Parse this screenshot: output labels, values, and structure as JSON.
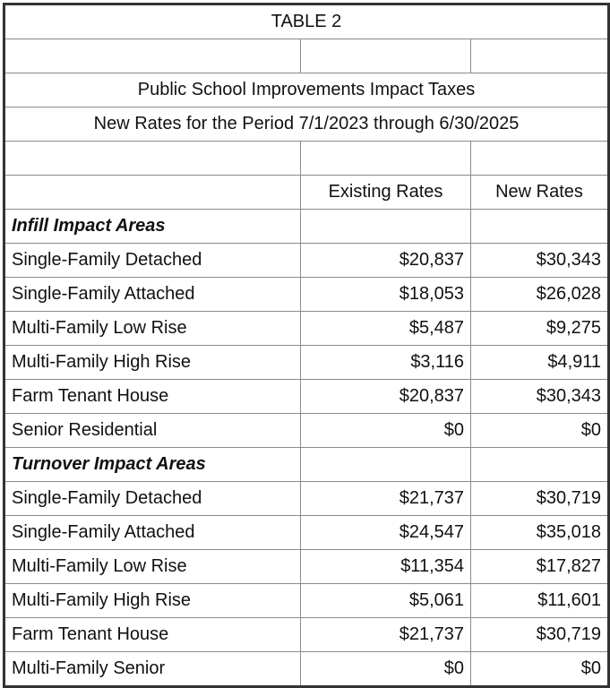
{
  "table": {
    "title": "TABLE 2",
    "subtitle1": "Public School Improvements Impact Taxes",
    "subtitle2": "New Rates for the Period 7/1/2023 through 6/30/2025",
    "headers": [
      "Existing Rates",
      "New Rates"
    ],
    "sections": [
      {
        "name": "Infill Impact Areas",
        "rows": [
          {
            "label": "Single-Family Detached",
            "existing": "$20,837",
            "new": "$30,343"
          },
          {
            "label": "Single-Family Attached",
            "existing": "$18,053",
            "new": "$26,028"
          },
          {
            "label": "Multi-Family Low Rise",
            "existing": "$5,487",
            "new": "$9,275"
          },
          {
            "label": "Multi-Family High Rise",
            "existing": "$3,116",
            "new": "$4,911"
          },
          {
            "label": "Farm Tenant House",
            "existing": "$20,837",
            "new": "$30,343"
          },
          {
            "label": "Senior Residential",
            "existing": "$0",
            "new": "$0"
          }
        ]
      },
      {
        "name": "Turnover Impact Areas",
        "rows": [
          {
            "label": "Single-Family Detached",
            "existing": "$21,737",
            "new": "$30,719"
          },
          {
            "label": "Single-Family Attached",
            "existing": "$24,547",
            "new": "$35,018"
          },
          {
            "label": "Multi-Family Low Rise",
            "existing": "$11,354",
            "new": "$17,827"
          },
          {
            "label": "Multi-Family High Rise",
            "existing": "$5,061",
            "new": "$11,601"
          },
          {
            "label": "Farm Tenant House",
            "existing": "$21,737",
            "new": "$30,719"
          },
          {
            "label": "Multi-Family Senior",
            "existing": "$0",
            "new": "$0"
          }
        ]
      }
    ]
  }
}
